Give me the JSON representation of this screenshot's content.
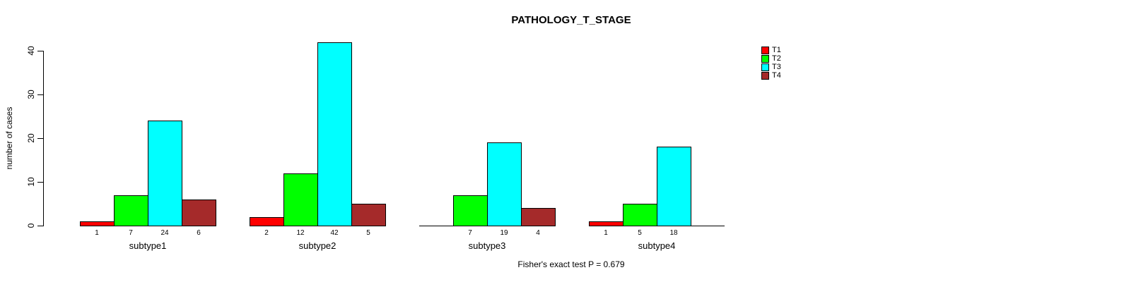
{
  "title": "PATHOLOGY_T_STAGE",
  "caption": "Fisher's exact test P = 0.679",
  "chart_data": {
    "type": "bar",
    "title": "PATHOLOGY_T_STAGE",
    "xlabel": "",
    "ylabel": "number of cases",
    "ylim": [
      0,
      40
    ],
    "yticks": [
      0,
      10,
      20,
      30,
      40
    ],
    "categories": [
      "subtype1",
      "subtype2",
      "subtype3",
      "subtype4"
    ],
    "series": [
      {
        "name": "T1",
        "color": "#FF0000",
        "values": [
          1,
          2,
          0,
          1
        ]
      },
      {
        "name": "T2",
        "color": "#00FF00",
        "values": [
          7,
          12,
          7,
          5
        ]
      },
      {
        "name": "T3",
        "color": "#00FFFF",
        "values": [
          24,
          42,
          19,
          18
        ]
      },
      {
        "name": "T4",
        "color": "#A52A2A",
        "values": [
          6,
          5,
          4,
          0
        ]
      }
    ],
    "bar_value_labels": true,
    "zero_values_hidden": true,
    "grid": false,
    "legend_position": "top-right",
    "annotation": "Fisher's exact test P = 0.679",
    "background": "#FFFFFF"
  }
}
